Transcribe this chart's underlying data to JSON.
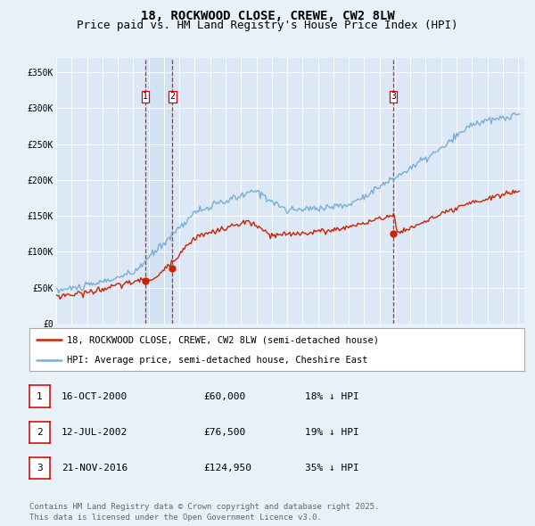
{
  "title": "18, ROCKWOOD CLOSE, CREWE, CW2 8LW",
  "subtitle": "Price paid vs. HM Land Registry's House Price Index (HPI)",
  "background_color": "#e8f0f8",
  "plot_bg_color": "#dce8f5",
  "grid_color": "#ffffff",
  "ylim": [
    0,
    370000
  ],
  "yticks": [
    0,
    50000,
    100000,
    150000,
    200000,
    250000,
    300000,
    350000
  ],
  "ytick_labels": [
    "£0",
    "£50K",
    "£100K",
    "£150K",
    "£200K",
    "£250K",
    "£300K",
    "£350K"
  ],
  "xstart_year": 1995,
  "xend_year": 2025,
  "hpi_color": "#7aaed6",
  "price_color": "#cc2200",
  "sale_dates_decimal": [
    2000.789,
    2002.536,
    2016.893
  ],
  "sale_prices": [
    60000,
    76500,
    124950
  ],
  "sale_labels": [
    "1",
    "2",
    "3"
  ],
  "legend_label_red": "18, ROCKWOOD CLOSE, CREWE, CW2 8LW (semi-detached house)",
  "legend_label_blue": "HPI: Average price, semi-detached house, Cheshire East",
  "table_rows": [
    [
      "1",
      "16-OCT-2000",
      "£60,000",
      "18% ↓ HPI"
    ],
    [
      "2",
      "12-JUL-2002",
      "£76,500",
      "19% ↓ HPI"
    ],
    [
      "3",
      "21-NOV-2016",
      "£124,950",
      "35% ↓ HPI"
    ]
  ],
  "footer_text": "Contains HM Land Registry data © Crown copyright and database right 2025.\nThis data is licensed under the Open Government Licence v3.0.",
  "title_fontsize": 10,
  "subtitle_fontsize": 9,
  "tick_fontsize": 7,
  "legend_fontsize": 7.5,
  "table_fontsize": 8,
  "footer_fontsize": 6.5
}
